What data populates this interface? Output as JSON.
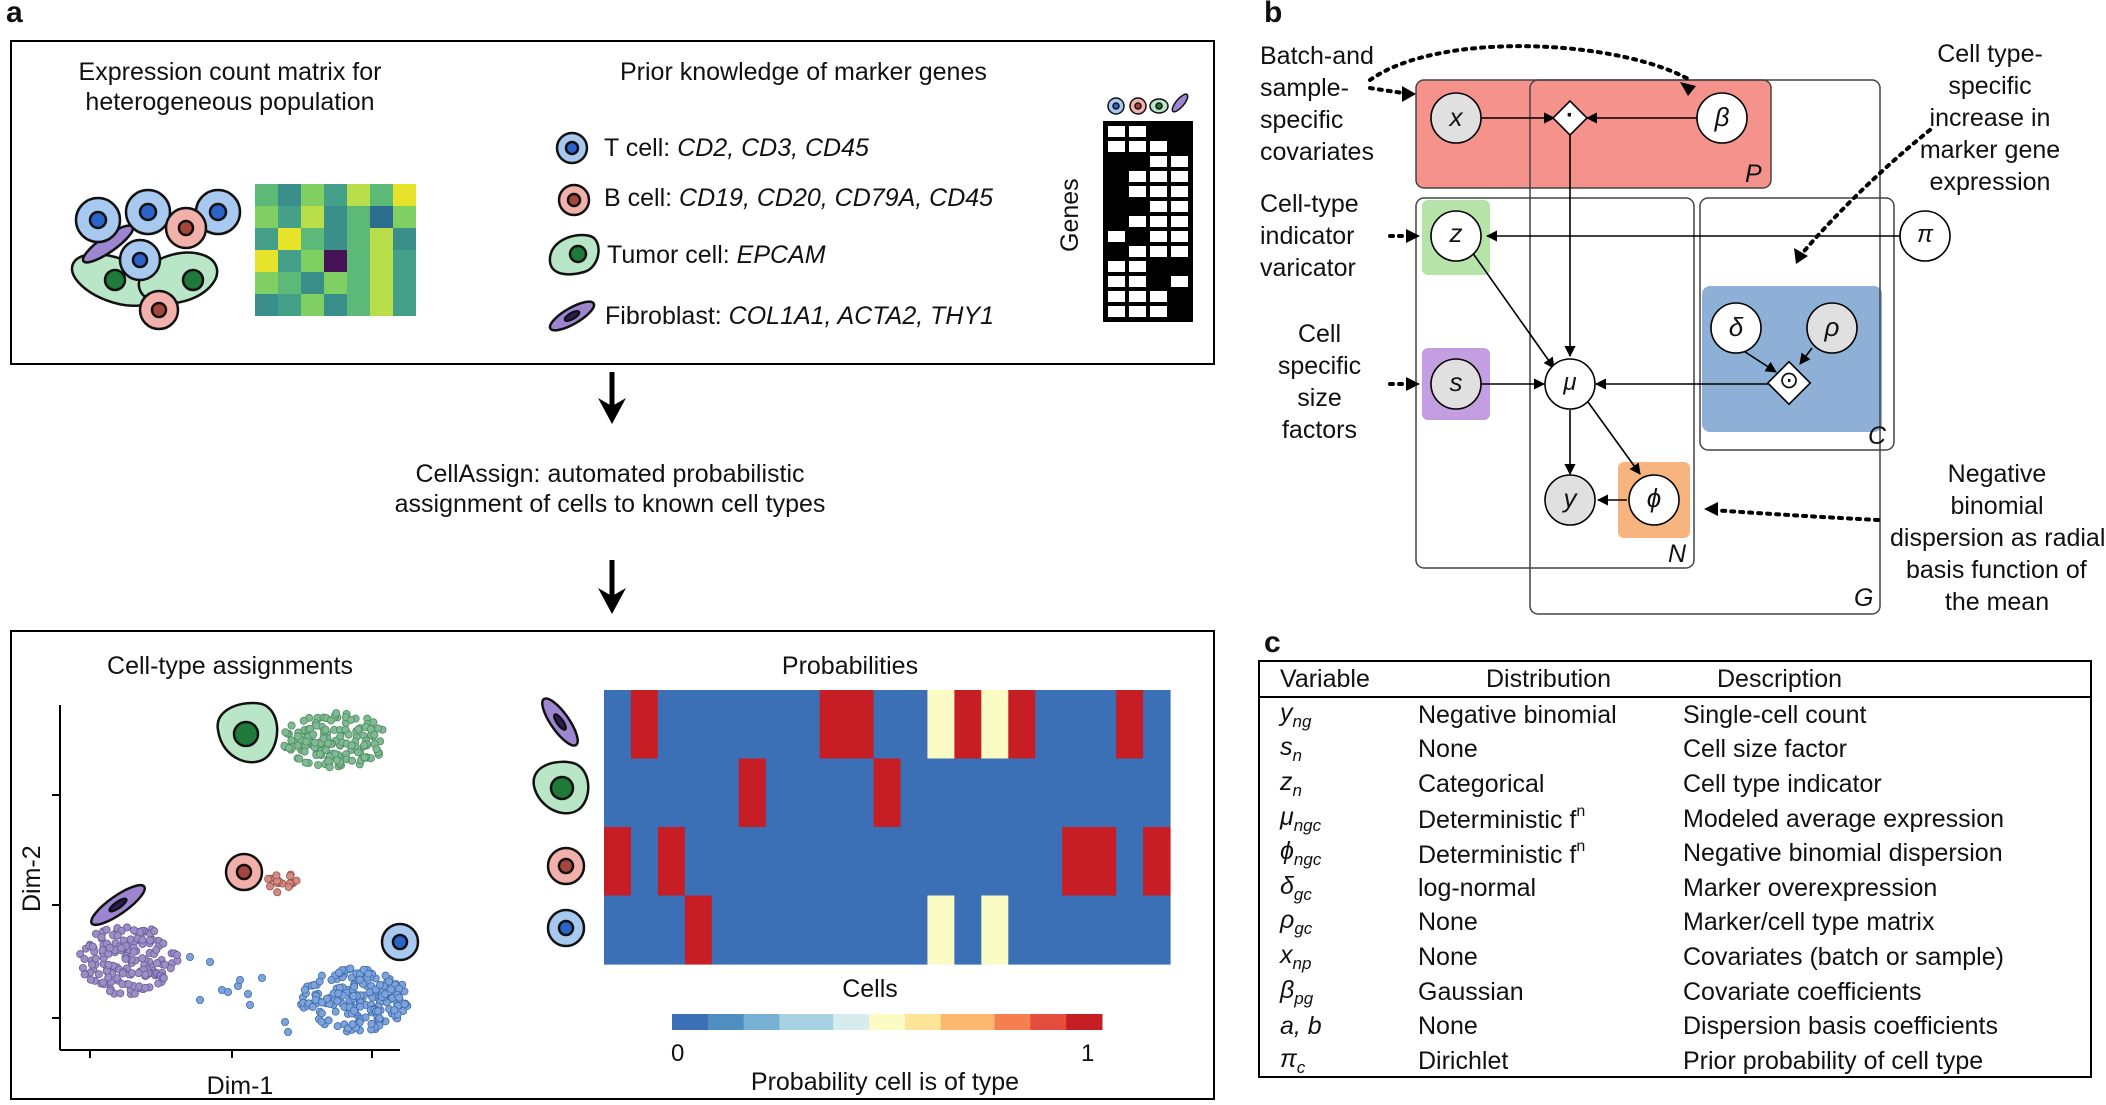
{
  "panel_a": {
    "letter": "a",
    "expr_title_1": "Expression count matrix for",
    "expr_title_2": "heterogeneous population",
    "prior_title": "Prior knowledge of marker genes",
    "markers": [
      {
        "name": "T cell:",
        "genes": "CD2, CD3, CD45"
      },
      {
        "name": "B cell:",
        "genes": "CD19, CD20, CD79A, CD45"
      },
      {
        "name": "Tumor cell:",
        "genes": "EPCAM"
      },
      {
        "name": "Fibroblast:",
        "genes": "COL1A1, ACTA2, THY1"
      }
    ],
    "genes_label": "Genes",
    "cellassign_1": "CellAssign: automated probabilistic",
    "cellassign_2": "assignment of cells to known cell types",
    "assign_title": "Cell-type assignments",
    "dim1": "Dim-1",
    "dim2": "Dim-2",
    "prob_title": "Probabilities",
    "cells_label": "Cells",
    "colorbar_min": "0",
    "colorbar_max": "1",
    "colorbar_label": "Probability cell is of type"
  },
  "panel_b": {
    "letter": "b",
    "ann_batch": [
      "Batch-and",
      "sample-",
      "specific",
      "covariates"
    ],
    "ann_celltype": [
      "Cell type-",
      "specific",
      "increase in",
      "marker gene",
      "expression"
    ],
    "ann_indicator": [
      "Cell-type",
      "indicator",
      "varicator"
    ],
    "ann_size": [
      "Cell",
      "specific",
      "size",
      "factors"
    ],
    "ann_dispersion": [
      "Negative",
      "binomial",
      "dispersion as radial",
      "basis function of",
      "the mean"
    ],
    "nodes": {
      "x": "x",
      "beta": "β",
      "z": "z",
      "pi": "π",
      "delta": "δ",
      "rho": "ρ",
      "s": "s",
      "mu": "μ",
      "y": "y",
      "phi": "ϕ",
      "dot": "·",
      "odot": "⊙"
    },
    "plates": {
      "P": "P",
      "N": "N",
      "G": "G",
      "C": "C"
    },
    "colors": {
      "red": "#f4928b",
      "green": "#b5e3a8",
      "purple": "#c39ee0",
      "blue": "#8fb0d6",
      "orange": "#f8b47e",
      "grey": "#e0e0e0"
    }
  },
  "panel_c": {
    "letter": "c",
    "headers": [
      "Variable",
      "Distribution",
      "Description"
    ],
    "rows": [
      {
        "var": "y",
        "sub": "ng",
        "dist": "Negative binomial",
        "desc": "Single-cell count"
      },
      {
        "var": "s",
        "sub": "n",
        "dist": "None",
        "desc": "Cell size factor"
      },
      {
        "var": "z",
        "sub": "n",
        "dist": "Categorical",
        "desc": "Cell type indicator"
      },
      {
        "var": "μ",
        "sub": "ngc",
        "dist": "Deterministic f",
        "sup": "n",
        "desc": "Modeled average expression"
      },
      {
        "var": "ϕ",
        "sub": "ngc",
        "dist": "Deterministic f",
        "sup": "n",
        "desc": "Negative binomial dispersion"
      },
      {
        "var": "δ",
        "sub": "gc",
        "dist": "log-normal",
        "desc": "Marker overexpression"
      },
      {
        "var": "ρ",
        "sub": "gc",
        "dist": "None",
        "desc": "Marker/cell type matrix"
      },
      {
        "var": "x",
        "sub": "np",
        "dist": "None",
        "desc": "Covariates (batch or sample)"
      },
      {
        "var": "β",
        "sub": "pg",
        "dist": "Gaussian",
        "desc": "Covariate coefficients"
      },
      {
        "var": "a, b",
        "sub": "",
        "dist": "None",
        "desc": "Dispersion basis coefficients"
      },
      {
        "var": "π",
        "sub": "c",
        "dist": "Dirichlet",
        "desc": "Prior probability of cell type"
      }
    ]
  },
  "heatmap": {
    "rows": [
      "Fibroblast",
      "Tumor cell",
      "B cell",
      "T cell"
    ],
    "values": [
      [
        0,
        1,
        0,
        0,
        0,
        0,
        0,
        0,
        1,
        1,
        0,
        0,
        0.5,
        1,
        0.5,
        1,
        0,
        0,
        0,
        1,
        0
      ],
      [
        0,
        0,
        0,
        0,
        0,
        1,
        0,
        0,
        0,
        0,
        1,
        0,
        0,
        0,
        0,
        0,
        0,
        0,
        0,
        0,
        0
      ],
      [
        1,
        0,
        1,
        0,
        0,
        0,
        0,
        0,
        0,
        0,
        0,
        0,
        0,
        0,
        0,
        0,
        0,
        1,
        1,
        0,
        1
      ],
      [
        0,
        0,
        0,
        1,
        0,
        0,
        0,
        0,
        0,
        0,
        0,
        0,
        0.5,
        0,
        0.5,
        0,
        0,
        0,
        0,
        0,
        0
      ]
    ],
    "colormap": [
      "#3b6fb6",
      "#4f8fc0",
      "#78b1d3",
      "#a8d2e4",
      "#d7ecee",
      "#fbfbc6",
      "#fee497",
      "#fcb86e",
      "#f67f4f",
      "#e34f3c",
      "#c71e26"
    ]
  }
}
